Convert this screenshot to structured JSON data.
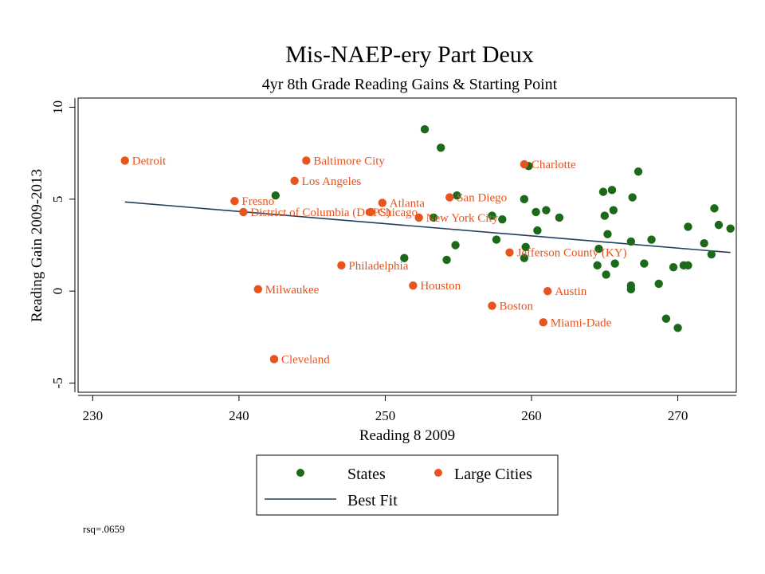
{
  "chart_data": {
    "type": "scatter",
    "title": "Mis-NAEP-ery Part Deux",
    "subtitle": "4yr 8th Grade Reading Gains & Starting Point",
    "xlabel": "Reading 8 2009",
    "ylabel": "Reading Gain 2009-2013",
    "xlim": [
      229,
      274
    ],
    "ylim": [
      -5.5,
      10.5
    ],
    "x_ticks": [
      230,
      240,
      250,
      260,
      270
    ],
    "y_ticks": [
      -5,
      0,
      5,
      10
    ],
    "note": "rsq=.0659",
    "colors": {
      "states": "#1a6a1a",
      "cities": "#e8531e",
      "fit": "#1f3f5f"
    },
    "legend": {
      "position": "bottom-center",
      "states_label": "States",
      "cities_label": "Large Cities",
      "fit_label": "Best Fit"
    },
    "best_fit": {
      "x": [
        232.2,
        273.6
      ],
      "y": [
        4.85,
        2.1
      ]
    },
    "states": [
      {
        "x": 242.5,
        "y": 5.2
      },
      {
        "x": 252.7,
        "y": 8.8
      },
      {
        "x": 253.8,
        "y": 7.8
      },
      {
        "x": 251.3,
        "y": 1.8
      },
      {
        "x": 254.2,
        "y": 1.7
      },
      {
        "x": 254.8,
        "y": 2.5
      },
      {
        "x": 254.9,
        "y": 5.2
      },
      {
        "x": 253.3,
        "y": 4.0
      },
      {
        "x": 257.3,
        "y": 4.1
      },
      {
        "x": 257.6,
        "y": 2.8
      },
      {
        "x": 258.0,
        "y": 3.9
      },
      {
        "x": 259.5,
        "y": 5.0
      },
      {
        "x": 259.8,
        "y": 6.8
      },
      {
        "x": 259.6,
        "y": 2.4
      },
      {
        "x": 259.5,
        "y": 1.8
      },
      {
        "x": 260.3,
        "y": 4.3
      },
      {
        "x": 260.4,
        "y": 3.3
      },
      {
        "x": 261.0,
        "y": 4.4
      },
      {
        "x": 261.9,
        "y": 4.0
      },
      {
        "x": 264.5,
        "y": 1.4
      },
      {
        "x": 264.6,
        "y": 2.3
      },
      {
        "x": 264.9,
        "y": 5.4
      },
      {
        "x": 265.0,
        "y": 4.1
      },
      {
        "x": 265.1,
        "y": 0.9
      },
      {
        "x": 265.2,
        "y": 3.1
      },
      {
        "x": 265.5,
        "y": 5.5
      },
      {
        "x": 265.6,
        "y": 4.4
      },
      {
        "x": 265.7,
        "y": 1.5
      },
      {
        "x": 266.8,
        "y": 2.7
      },
      {
        "x": 266.8,
        "y": 0.3
      },
      {
        "x": 266.8,
        "y": 0.1
      },
      {
        "x": 266.9,
        "y": 5.1
      },
      {
        "x": 267.3,
        "y": 6.5
      },
      {
        "x": 267.7,
        "y": 1.5
      },
      {
        "x": 268.2,
        "y": 2.8
      },
      {
        "x": 268.7,
        "y": 0.4
      },
      {
        "x": 269.2,
        "y": -1.5
      },
      {
        "x": 269.7,
        "y": 1.3
      },
      {
        "x": 270.0,
        "y": -2.0
      },
      {
        "x": 270.4,
        "y": 1.4
      },
      {
        "x": 270.7,
        "y": 1.4
      },
      {
        "x": 270.7,
        "y": 3.5
      },
      {
        "x": 271.8,
        "y": 2.6
      },
      {
        "x": 272.3,
        "y": 2.0
      },
      {
        "x": 272.5,
        "y": 4.5
      },
      {
        "x": 272.8,
        "y": 3.6
      },
      {
        "x": 273.6,
        "y": 3.4
      }
    ],
    "cities": [
      {
        "name": "Detroit",
        "x": 232.2,
        "y": 7.1
      },
      {
        "name": "Baltimore City",
        "x": 244.6,
        "y": 7.1
      },
      {
        "name": "Los Angeles",
        "x": 243.8,
        "y": 6.0
      },
      {
        "name": "Fresno",
        "x": 239.7,
        "y": 4.9
      },
      {
        "name": "District of Columbia (DCPS)",
        "x": 240.3,
        "y": 4.3
      },
      {
        "name": "Chicago",
        "x": 249.0,
        "y": 4.3
      },
      {
        "name": "Atlanta",
        "x": 249.8,
        "y": 4.8
      },
      {
        "name": "New York City",
        "x": 252.3,
        "y": 4.0
      },
      {
        "name": "San Diego",
        "x": 254.4,
        "y": 5.1
      },
      {
        "name": "Charlotte",
        "x": 259.5,
        "y": 6.9
      },
      {
        "name": "Jefferson County (KY)",
        "x": 258.5,
        "y": 2.1
      },
      {
        "name": "Philadelphia",
        "x": 247.0,
        "y": 1.4
      },
      {
        "name": "Houston",
        "x": 251.9,
        "y": 0.3
      },
      {
        "name": "Milwaukee",
        "x": 241.3,
        "y": 0.1
      },
      {
        "name": "Austin",
        "x": 261.1,
        "y": 0.0
      },
      {
        "name": "Boston",
        "x": 257.3,
        "y": -0.8
      },
      {
        "name": "Miami-Dade",
        "x": 260.8,
        "y": -1.7
      },
      {
        "name": "Cleveland",
        "x": 242.4,
        "y": -3.7
      }
    ]
  }
}
